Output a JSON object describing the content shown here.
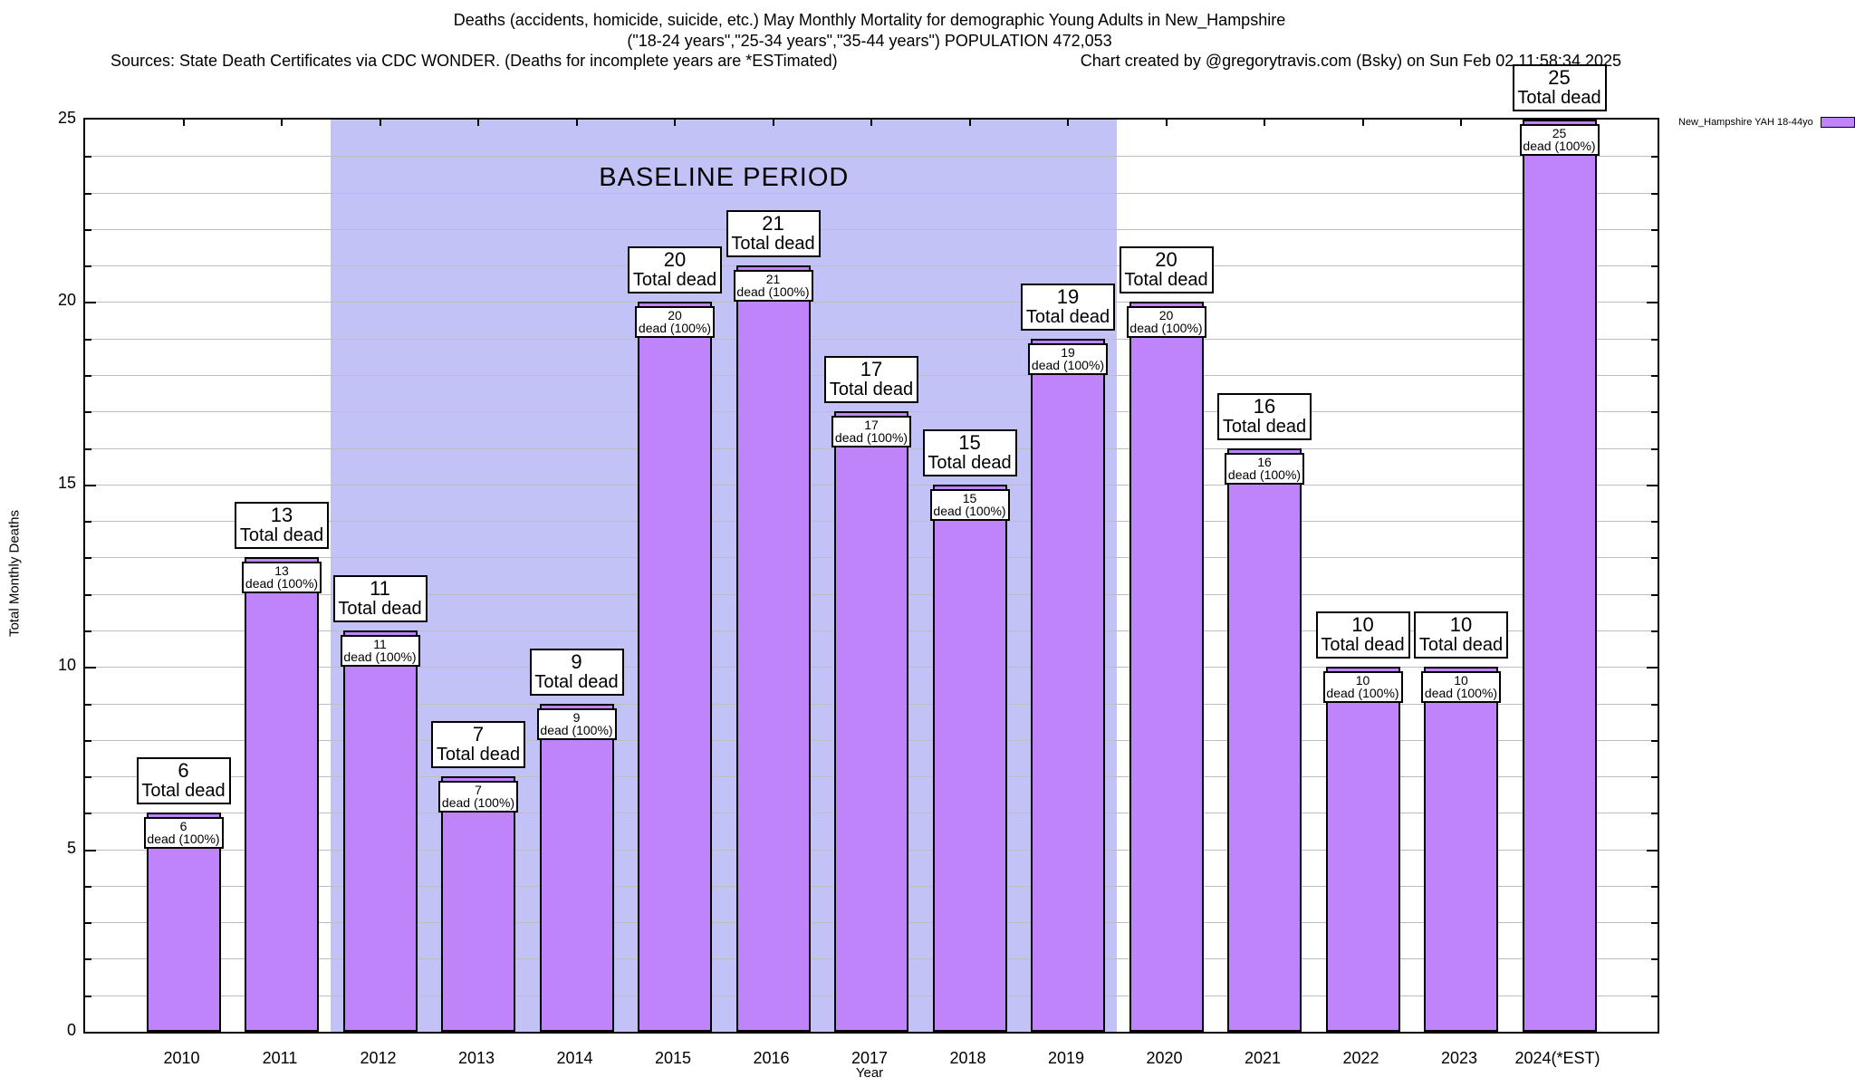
{
  "header": {
    "title_line1": "Deaths (accidents, homicide, suicide, etc.) May Monthly Mortality for demographic Young Adults in New_Hampshire",
    "title_line2": "(\"18-24 years\",\"25-34 years\",\"35-44 years\") POPULATION 472,053",
    "sources": "Sources: State Death Certificates via CDC WONDER. (Deaths for incomplete years are *ESTimated)",
    "credit": "Chart created by @gregorytravis.com (Bsky) on Sun Feb 02 11:58:34 2025"
  },
  "chart_data": {
    "type": "bar",
    "title": "Deaths (accidents, homicide, suicide, etc.) May Monthly Mortality for demographic Young Adults in New_Hampshire",
    "categories": [
      "2010",
      "2011",
      "2012",
      "2013",
      "2014",
      "2015",
      "2016",
      "2017",
      "2018",
      "2019",
      "2020",
      "2021",
      "2022",
      "2023",
      "2024(*EST)"
    ],
    "values": [
      6,
      13,
      11,
      7,
      9,
      20,
      21,
      17,
      15,
      19,
      20,
      16,
      10,
      10,
      25
    ],
    "bar_top_label_suffix": "Total dead",
    "bar_inner_label_suffix": "dead (100%)",
    "xlabel": "Year",
    "ylabel": "Total Monthly Deaths",
    "ylim": [
      0,
      25
    ],
    "yticks": [
      0,
      5,
      10,
      15,
      20,
      25
    ],
    "grid": "on",
    "baseline_region": {
      "label": "BASELINE PERIOD",
      "from_category": "2012",
      "to_category": "2019"
    },
    "legend": {
      "label": "New_Hampshire YAH 18-44yo",
      "position": "top-right-outside"
    },
    "colors": {
      "bar_fill": "#bf84fa",
      "bar_border": "#000000",
      "baseline_bg": "#c2c2f6",
      "grid": "#bdbdbd",
      "text": "#000000"
    }
  }
}
